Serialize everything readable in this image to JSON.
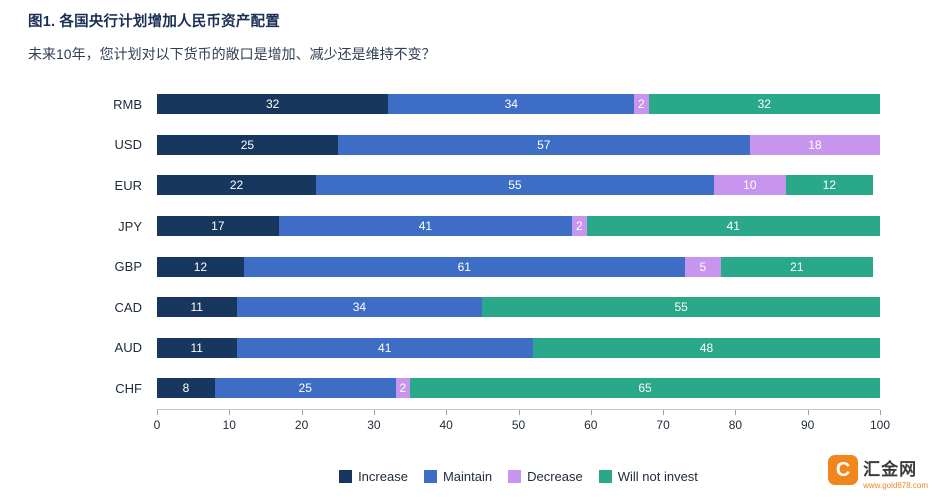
{
  "header": {
    "title": "图1. 各国央行计划增加人民币资产配置",
    "subtitle": "未来10年，您计划对以下货币的敞口是增加、减少还是维持不变？"
  },
  "chart_data": {
    "type": "bar",
    "orientation": "horizontal",
    "stacked": true,
    "title": "图1. 各国央行计划增加人民币资产配置",
    "subtitle": "未来10年，您计划对以下货币的敞口是增加、减少还是维持不变？",
    "categories": [
      "RMB",
      "USD",
      "EUR",
      "JPY",
      "GBP",
      "CAD",
      "AUD",
      "CHF"
    ],
    "series": [
      {
        "name": "Increase",
        "color": "#17375e",
        "values": [
          32,
          25,
          22,
          17,
          12,
          11,
          11,
          8
        ]
      },
      {
        "name": "Maintain",
        "color": "#3e6dc5",
        "values": [
          34,
          57,
          55,
          41,
          61,
          34,
          41,
          25
        ]
      },
      {
        "name": "Decrease",
        "color": "#c795ee",
        "values": [
          2,
          18,
          10,
          2,
          5,
          0,
          0,
          2
        ]
      },
      {
        "name": "Will not invest",
        "color": "#29a88a",
        "values": [
          32,
          0,
          12,
          41,
          21,
          55,
          48,
          65
        ]
      }
    ],
    "xlim": [
      0,
      100
    ],
    "x_ticks": [
      0,
      10,
      20,
      30,
      40,
      50,
      60,
      70,
      80,
      90,
      100
    ],
    "legend_position": "bottom",
    "value_labels": true,
    "grid": false
  },
  "footer": {
    "logo_text": "汇金网",
    "logo_url": "www.gold678.com"
  }
}
